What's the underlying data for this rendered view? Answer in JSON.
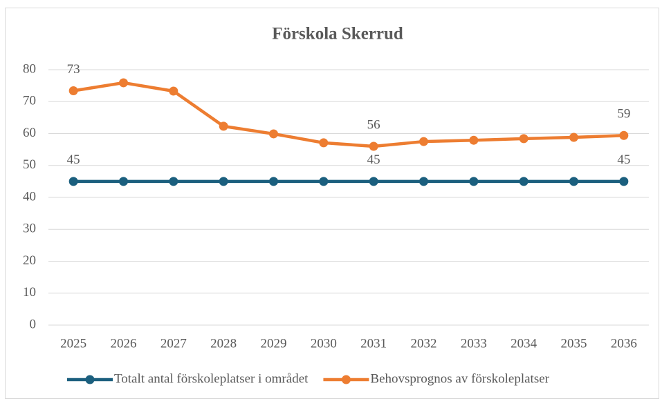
{
  "chart_data": {
    "type": "line",
    "title": "Förskola Skerrud",
    "categories": [
      "2025",
      "2026",
      "2027",
      "2028",
      "2029",
      "2030",
      "2031",
      "2032",
      "2033",
      "2034",
      "2035",
      "2036"
    ],
    "series": [
      {
        "name": "Totalt antal förskoleplatser i området",
        "color": "#1b5f7e",
        "values": [
          45,
          45,
          45,
          45,
          45,
          45,
          45,
          45,
          45,
          45,
          45,
          45
        ],
        "value_labels": [
          "45",
          null,
          null,
          null,
          null,
          null,
          "45",
          null,
          null,
          null,
          null,
          "45"
        ]
      },
      {
        "name": "Behovsprognos av förskoleplatser",
        "color": "#ed7d31",
        "values": [
          73.4,
          75.9,
          73.3,
          62.3,
          59.9,
          57.1,
          56.0,
          57.5,
          57.9,
          58.4,
          58.8,
          59.4
        ],
        "value_labels": [
          "73",
          null,
          null,
          null,
          null,
          null,
          "56",
          null,
          null,
          null,
          null,
          "59"
        ]
      }
    ],
    "ylim": [
      0,
      80
    ],
    "yticks": [
      0,
      10,
      20,
      30,
      40,
      50,
      60,
      70,
      80
    ],
    "grid": true,
    "legend": "bottom"
  }
}
